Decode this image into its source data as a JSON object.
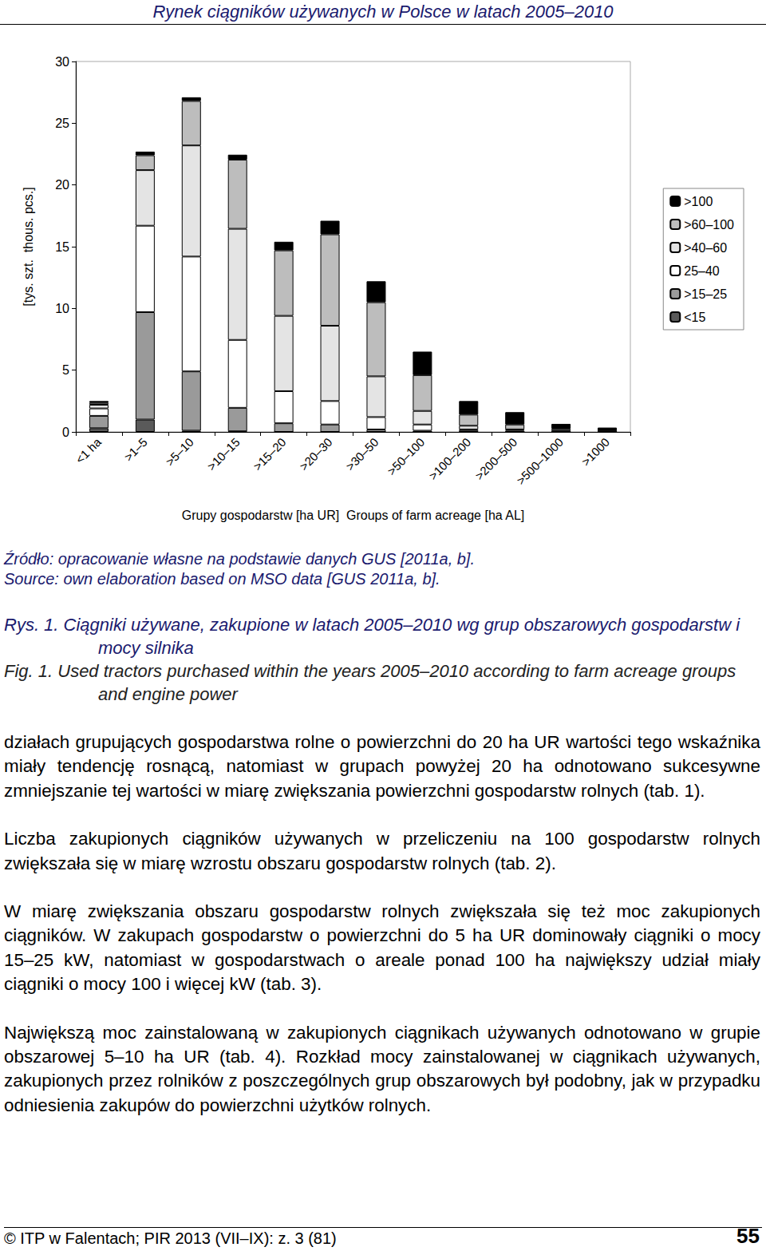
{
  "header": "Rynek ciągników używanych w Polsce w latach 2005–2010",
  "chart_data": {
    "type": "bar",
    "stacked": true,
    "grid": false,
    "legend": "right",
    "x_label": "Grupy gospodarstw [ha UR]  Groups of farm acreage [ha AL]",
    "y_label": "[tys. szt.  thous. pcs.]",
    "categories": [
      "<1 ha",
      ">1–5",
      ">5–10",
      ">10–15",
      ">15–20",
      ">20–30",
      ">30–50",
      ">50–100",
      ">100–200",
      ">200–500",
      ">500–1000",
      ">1000"
    ],
    "ylim": [
      0,
      30
    ],
    "yticks": [
      0,
      5,
      10,
      15,
      20,
      25,
      30
    ],
    "series": [
      {
        "name": "<15",
        "color": "#5a5a5a",
        "values": [
          0.3,
          1.0,
          0.1,
          0.05,
          0,
          0,
          0,
          0,
          0,
          0,
          0,
          0
        ]
      },
      {
        "name": ">15–25",
        "color": "#9a9a9a",
        "values": [
          1.0,
          8.7,
          4.8,
          1.9,
          0.7,
          0.6,
          0.2,
          0.1,
          0.05,
          0,
          0,
          0
        ]
      },
      {
        "name": "25–40",
        "color": "#ffffff",
        "values": [
          0.6,
          7.0,
          9.3,
          5.5,
          2.6,
          1.9,
          1.0,
          0.5,
          0.15,
          0.1,
          0.05,
          0
        ]
      },
      {
        "name": ">40–60",
        "color": "#e4e4e4",
        "values": [
          0.3,
          4.5,
          9.0,
          9.0,
          6.1,
          6.1,
          3.3,
          1.1,
          0.3,
          0.1,
          0.05,
          0
        ]
      },
      {
        "name": ">60–100",
        "color": "#bdbdbd",
        "values": [
          0.15,
          1.2,
          3.6,
          5.6,
          5.3,
          7.4,
          6.0,
          2.9,
          0.9,
          0.4,
          0.15,
          0.05
        ]
      },
      {
        "name": ">100",
        "color": "#000000",
        "values": [
          0.15,
          0.3,
          0.3,
          0.4,
          0.7,
          1.1,
          1.7,
          1.9,
          1.1,
          1.0,
          0.4,
          0.3
        ]
      }
    ]
  },
  "source": [
    "Źródło: opracowanie własne na podstawie danych GUS [2011a, b].",
    "Source: own elaboration based on MSO data [GUS 2011a, b]."
  ],
  "caption_pl": "Rys. 1. Ciągniki używane, zakupione w latach 2005–2010 wg grup obszarowych gospodarstw i mocy silnika",
  "caption_en": "Fig. 1. Used tractors purchased within the years 2005–2010 according to farm acreage groups and engine power",
  "paragraphs": [
    "działach grupujących gospodarstwa rolne o powierzchni do 20 ha UR wartości tego wskaźnika miały tendencję rosnącą, natomiast w grupach powyżej 20 ha odnotowano sukcesywne zmniejszanie tej wartości w miarę zwiększania powierzchni gospodarstw rolnych (tab. 1).",
    "Liczba zakupionych ciągników używanych w przeliczeniu na 100 gospodarstw rolnych zwiększała się w miarę wzrostu obszaru gospodarstw rolnych (tab. 2).",
    "W miarę zwiększania obszaru gospodarstw rolnych zwiększała się też moc zakupionych ciągników. W zakupach gospodarstw o powierzchni do 5 ha UR dominowały ciągniki o mocy 15–25 kW, natomiast w gospodarstwach o areale ponad 100 ha największy udział miały ciągniki o mocy 100 i więcej kW (tab. 3).",
    "Największą moc zainstalowaną w zakupionych ciągnikach używanych odnotowano w grupie obszarowej 5–10 ha UR (tab. 4). Rozkład mocy zainstalowanej w ciągnikach używanych, zakupionych przez rolników z poszczególnych grup obszarowych był podobny, jak w przypadku odniesienia zakupów do powierzchni użytków rolnych."
  ],
  "footer_left": "© ITP w Falentach; PIR 2013 (VII–IX): z. 3 (81)",
  "footer_right": "55"
}
